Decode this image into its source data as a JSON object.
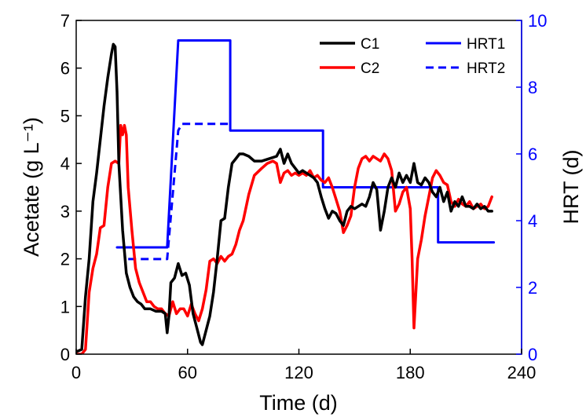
{
  "chart_data": {
    "type": "line",
    "xlabel": "Time (d)",
    "ylabel_left": "Acetate (g L⁻¹)",
    "ylabel_right": "HRT (d)",
    "xlim": [
      0,
      240
    ],
    "ylim_left": [
      0,
      7
    ],
    "ylim_right": [
      0,
      10
    ],
    "x_ticks": [
      0,
      60,
      120,
      180,
      240
    ],
    "y_left_ticks": [
      0,
      1,
      2,
      3,
      4,
      5,
      6,
      7
    ],
    "y_right_ticks": [
      0,
      2,
      4,
      6,
      8,
      10
    ],
    "legend_position": "top-right",
    "colors": {
      "C1": "#000000",
      "C2": "#ff0000",
      "HRT": "#0000ff"
    },
    "series": [
      {
        "name": "C1",
        "axis": "left",
        "style": "solid",
        "color": "#000000",
        "x": [
          0,
          3,
          5,
          7,
          9,
          11,
          13,
          15,
          17,
          19,
          20,
          21,
          22,
          23,
          25,
          27,
          29,
          31,
          33,
          35,
          37,
          40,
          43,
          46,
          48,
          49,
          50,
          51,
          53,
          55,
          57,
          59,
          61,
          63,
          65,
          67,
          68,
          70,
          72,
          74,
          76,
          78,
          80,
          82,
          84,
          86,
          88,
          90,
          93,
          96,
          100,
          104,
          108,
          110,
          112,
          114,
          116,
          118,
          120,
          122,
          124,
          126,
          128,
          130,
          132,
          134,
          136,
          138,
          140,
          142,
          144,
          146,
          148,
          150,
          152,
          154,
          156,
          158,
          160,
          162,
          164,
          166,
          168,
          170,
          172,
          174,
          176,
          178,
          180,
          182,
          184,
          186,
          188,
          190,
          192,
          194,
          196,
          198,
          200,
          202,
          204,
          206,
          208,
          210,
          212,
          214,
          216,
          218,
          220,
          222,
          224
        ],
        "y": [
          0.05,
          0.1,
          1.2,
          2.0,
          3.2,
          3.8,
          4.5,
          5.2,
          5.8,
          6.3,
          6.5,
          6.45,
          5.5,
          4.0,
          2.6,
          1.7,
          1.4,
          1.2,
          1.1,
          1.05,
          0.95,
          0.95,
          0.9,
          0.9,
          0.85,
          0.45,
          0.8,
          1.5,
          1.6,
          1.9,
          1.65,
          1.7,
          1.45,
          0.85,
          0.55,
          0.25,
          0.2,
          0.5,
          0.8,
          1.3,
          2.0,
          2.8,
          2.85,
          3.5,
          4.0,
          4.1,
          4.2,
          4.2,
          4.15,
          4.05,
          4.05,
          4.1,
          4.15,
          4.3,
          4.0,
          4.2,
          4.0,
          3.9,
          3.8,
          3.85,
          3.8,
          3.75,
          3.7,
          3.6,
          3.3,
          3.05,
          2.85,
          3.0,
          2.95,
          2.8,
          2.7,
          3.0,
          3.1,
          3.05,
          3.1,
          3.15,
          3.1,
          3.3,
          3.6,
          3.45,
          2.6,
          3.0,
          3.5,
          3.7,
          3.5,
          3.8,
          3.6,
          3.75,
          3.6,
          4.0,
          3.6,
          3.55,
          3.7,
          3.6,
          3.4,
          3.3,
          3.5,
          3.2,
          3.4,
          3.0,
          3.2,
          3.1,
          3.3,
          3.1,
          3.1,
          3.05,
          3.15,
          3.05,
          3.1,
          3.0,
          3.0
        ]
      },
      {
        "name": "C2",
        "axis": "left",
        "style": "solid",
        "color": "#ff0000",
        "x": [
          0,
          3,
          5,
          7,
          9,
          11,
          13,
          15,
          17,
          19,
          21,
          23,
          24,
          25,
          26,
          27,
          28,
          30,
          32,
          34,
          36,
          38,
          40,
          42,
          44,
          46,
          48,
          50,
          52,
          54,
          56,
          58,
          60,
          62,
          64,
          66,
          68,
          70,
          72,
          74,
          76,
          78,
          80,
          82,
          84,
          86,
          88,
          90,
          93,
          96,
          100,
          103,
          106,
          108,
          110,
          112,
          114,
          116,
          118,
          120,
          122,
          124,
          126,
          128,
          130,
          132,
          134,
          136,
          138,
          140,
          142,
          144,
          146,
          148,
          150,
          152,
          154,
          156,
          158,
          160,
          162,
          164,
          166,
          168,
          170,
          172,
          174,
          176,
          178,
          180,
          181,
          182,
          184,
          186,
          188,
          190,
          192,
          194,
          196,
          198,
          200,
          202,
          204,
          206,
          208,
          210,
          212,
          214,
          216,
          218,
          220,
          222,
          224
        ],
        "y": [
          0.0,
          0.0,
          0.1,
          1.3,
          1.8,
          2.1,
          2.65,
          2.7,
          3.5,
          4.0,
          4.05,
          4.0,
          4.8,
          4.6,
          4.8,
          4.6,
          3.5,
          2.6,
          1.8,
          1.5,
          1.3,
          1.1,
          1.1,
          1.0,
          0.95,
          0.95,
          0.85,
          0.8,
          1.1,
          0.85,
          0.95,
          0.95,
          0.8,
          1.05,
          0.85,
          0.7,
          0.95,
          1.35,
          1.95,
          2.0,
          1.9,
          2.05,
          1.95,
          2.05,
          2.1,
          2.3,
          2.6,
          2.8,
          3.35,
          3.75,
          3.9,
          4.0,
          4.05,
          4.0,
          3.6,
          3.8,
          3.85,
          3.75,
          3.8,
          3.75,
          3.8,
          3.75,
          3.85,
          3.7,
          3.75,
          3.65,
          3.6,
          3.7,
          3.5,
          3.25,
          3.0,
          2.55,
          2.7,
          2.9,
          3.5,
          3.9,
          4.1,
          4.15,
          4.05,
          4.15,
          4.1,
          4.05,
          4.2,
          4.1,
          3.85,
          3.0,
          3.15,
          3.4,
          3.5,
          3.05,
          2.0,
          0.55,
          2.0,
          2.4,
          2.9,
          3.3,
          3.7,
          3.85,
          3.75,
          3.6,
          3.55,
          3.2,
          3.1,
          3.25,
          3.15,
          3.1,
          3.2,
          3.05,
          3.1,
          3.15,
          3.05,
          3.1,
          3.3
        ]
      },
      {
        "name": "HRT1",
        "axis": "right",
        "style": "solid",
        "color": "#0000ff",
        "x": [
          22,
          49,
          55,
          55,
          83,
          83,
          133,
          133,
          195,
          195,
          225
        ],
        "y": [
          3.2,
          3.2,
          9.4,
          9.4,
          9.4,
          6.7,
          6.7,
          5.0,
          5.0,
          3.35,
          3.35
        ]
      },
      {
        "name": "HRT2",
        "axis": "right",
        "style": "dashed",
        "color": "#0000ff",
        "x": [
          28,
          49,
          55,
          57,
          83
        ],
        "y": [
          2.85,
          2.85,
          6.7,
          6.9,
          6.9
        ]
      }
    ]
  }
}
